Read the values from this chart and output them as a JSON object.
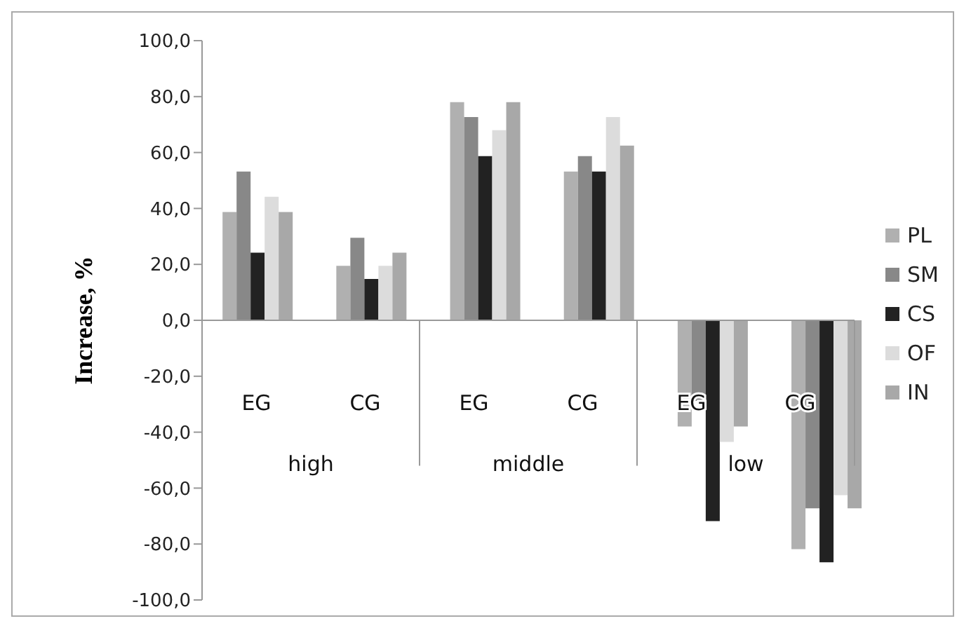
{
  "chart_data": {
    "type": "bar",
    "ylabel": "Increase, %",
    "categories": [
      "EG",
      "CG",
      "EG",
      "CG",
      "EG",
      "CG"
    ],
    "annotations": [
      "high",
      "middle",
      "low"
    ],
    "series": [
      {
        "name": "PL",
        "color": "#b0b0b0",
        "values": [
          38.7,
          19.5,
          78,
          53.2,
          -38,
          -81.8
        ]
      },
      {
        "name": "SM",
        "color": "#888888",
        "values": [
          53.2,
          29.5,
          72.7,
          58.7,
          -28.8,
          -67.2
        ]
      },
      {
        "name": "CS",
        "color": "#222222",
        "values": [
          24.2,
          14.8,
          58.7,
          53.2,
          -71.8,
          -86.5
        ]
      },
      {
        "name": "OF",
        "color": "#dcdcdc",
        "values": [
          44.2,
          19.5,
          68,
          72.7,
          -43.5,
          -62.5
        ]
      },
      {
        "name": "IN",
        "color": "#a8a8a8",
        "values": [
          38.7,
          24.2,
          78,
          62.5,
          -38,
          -67.2
        ]
      }
    ],
    "ylim": [
      -100,
      100
    ],
    "yticks": [
      {
        "value": -100,
        "label": "-100,0"
      },
      {
        "value": -80,
        "label": "-80,0"
      },
      {
        "value": -60,
        "label": "-60,0"
      },
      {
        "value": -40,
        "label": "-40,0"
      },
      {
        "value": -20,
        "label": "-20,0"
      },
      {
        "value": 0,
        "label": "0,0"
      },
      {
        "value": 20,
        "label": "20,0"
      },
      {
        "value": 40,
        "label": "40,0"
      },
      {
        "value": 60,
        "label": "60,0"
      },
      {
        "value": 80,
        "label": "80,0"
      },
      {
        "value": 100,
        "label": "100,0"
      }
    ],
    "legend": "right"
  }
}
